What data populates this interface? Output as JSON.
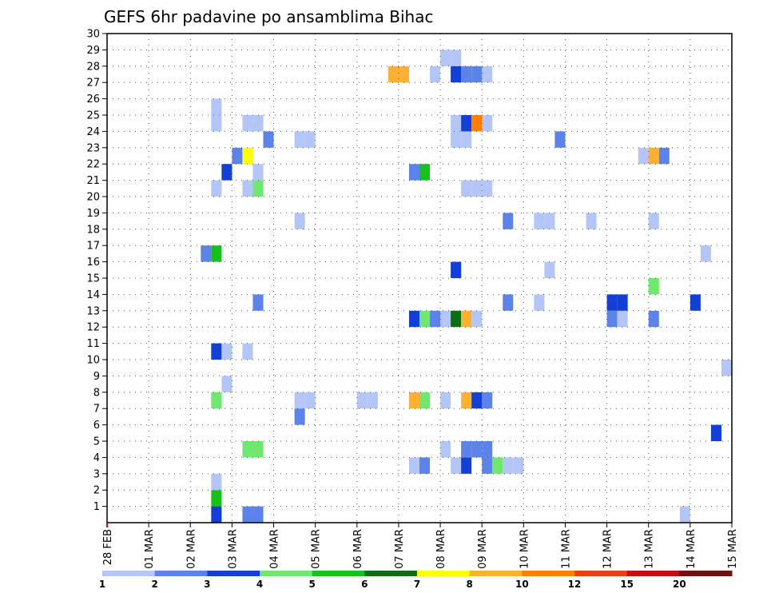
{
  "chart_data": {
    "type": "heatmap",
    "title": "GEFS 6hr padavine po ansamblima Bihac",
    "x_tick_labels": [
      "28 FEB",
      "01 MAR",
      "02 MAR",
      "03 MAR",
      "04 MAR",
      "05 MAR",
      "06 MAR",
      "07 MAR",
      "08 MAR",
      "09 MAR",
      "10 MAR",
      "11 MAR",
      "12 MAR",
      "13 MAR",
      "14 MAR",
      "15 MAR"
    ],
    "y_tick_labels": [
      "1",
      "2",
      "3",
      "4",
      "5",
      "6",
      "7",
      "8",
      "9",
      "10",
      "11",
      "12",
      "13",
      "14",
      "15",
      "16",
      "17",
      "18",
      "19",
      "20",
      "21",
      "22",
      "23",
      "24",
      "25",
      "26",
      "27",
      "28",
      "29",
      "30"
    ],
    "xlim": [
      0,
      60
    ],
    "ylim": [
      0,
      30
    ],
    "grid": true,
    "colorbar": {
      "labels": [
        "1",
        "2",
        "3",
        "4",
        "5",
        "6",
        "7",
        "8",
        "10",
        "12",
        "15",
        "20"
      ],
      "colors": [
        "#b3c6f7",
        "#5b83ea",
        "#1240d6",
        "#6ee86e",
        "#18c01c",
        "#0c6e12",
        "#ffff00",
        "#ffb030",
        "#ff8000",
        "#e84010",
        "#c01010",
        "#701010"
      ]
    },
    "cells_note_units": "x = 6-hour step index from 28 FEB 00 (4 per day), y = ensemble member, c = colorbar class index",
    "cells": [
      {
        "x": 10.5,
        "y": 0,
        "c": 2
      },
      {
        "x": 13.5,
        "y": 0,
        "c": 1
      },
      {
        "x": 14.5,
        "y": 0,
        "c": 1
      },
      {
        "x": 55.5,
        "y": 0,
        "c": 0
      },
      {
        "x": 10.5,
        "y": 1,
        "c": 4
      },
      {
        "x": 10.5,
        "y": 2,
        "c": 0
      },
      {
        "x": 29.5,
        "y": 3,
        "c": 0
      },
      {
        "x": 30.5,
        "y": 3,
        "c": 1
      },
      {
        "x": 33.5,
        "y": 3,
        "c": 0
      },
      {
        "x": 34.5,
        "y": 3,
        "c": 2
      },
      {
        "x": 36.5,
        "y": 3,
        "c": 1
      },
      {
        "x": 37.5,
        "y": 3,
        "c": 3
      },
      {
        "x": 38.5,
        "y": 3,
        "c": 0
      },
      {
        "x": 39.5,
        "y": 3,
        "c": 0
      },
      {
        "x": 13.5,
        "y": 4,
        "c": 3
      },
      {
        "x": 14.5,
        "y": 4,
        "c": 3
      },
      {
        "x": 32.5,
        "y": 4,
        "c": 0
      },
      {
        "x": 34.5,
        "y": 4,
        "c": 1
      },
      {
        "x": 35.5,
        "y": 4,
        "c": 1
      },
      {
        "x": 36.5,
        "y": 4,
        "c": 1
      },
      {
        "x": 58.5,
        "y": 5,
        "c": 2
      },
      {
        "x": 18.5,
        "y": 6,
        "c": 1
      },
      {
        "x": 10.5,
        "y": 7,
        "c": 3
      },
      {
        "x": 18.5,
        "y": 7,
        "c": 0
      },
      {
        "x": 19.5,
        "y": 7,
        "c": 0
      },
      {
        "x": 24.5,
        "y": 7,
        "c": 0
      },
      {
        "x": 25.5,
        "y": 7,
        "c": 0
      },
      {
        "x": 29.5,
        "y": 7,
        "c": 7
      },
      {
        "x": 30.5,
        "y": 7,
        "c": 3
      },
      {
        "x": 32.5,
        "y": 7,
        "c": 0
      },
      {
        "x": 34.5,
        "y": 7,
        "c": 7
      },
      {
        "x": 35.5,
        "y": 7,
        "c": 2
      },
      {
        "x": 36.5,
        "y": 7,
        "c": 1
      },
      {
        "x": 11.5,
        "y": 8,
        "c": 0
      },
      {
        "x": 59.5,
        "y": 9,
        "c": 0
      },
      {
        "x": 10.5,
        "y": 10,
        "c": 2
      },
      {
        "x": 11.5,
        "y": 10,
        "c": 0
      },
      {
        "x": 13.5,
        "y": 10,
        "c": 0
      },
      {
        "x": 29.5,
        "y": 12,
        "c": 2
      },
      {
        "x": 30.5,
        "y": 12,
        "c": 3
      },
      {
        "x": 31.5,
        "y": 12,
        "c": 1
      },
      {
        "x": 32.5,
        "y": 12,
        "c": 0
      },
      {
        "x": 33.5,
        "y": 12,
        "c": 5
      },
      {
        "x": 34.5,
        "y": 12,
        "c": 7
      },
      {
        "x": 35.5,
        "y": 12,
        "c": 0
      },
      {
        "x": 48.5,
        "y": 12,
        "c": 1
      },
      {
        "x": 49.5,
        "y": 12,
        "c": 0
      },
      {
        "x": 52.5,
        "y": 12,
        "c": 1
      },
      {
        "x": 14.5,
        "y": 13,
        "c": 1
      },
      {
        "x": 38.5,
        "y": 13,
        "c": 1
      },
      {
        "x": 41.5,
        "y": 13,
        "c": 0
      },
      {
        "x": 48.5,
        "y": 13,
        "c": 2
      },
      {
        "x": 49.5,
        "y": 13,
        "c": 2
      },
      {
        "x": 56.5,
        "y": 13,
        "c": 2
      },
      {
        "x": 52.5,
        "y": 14,
        "c": 3
      },
      {
        "x": 33.5,
        "y": 15,
        "c": 2
      },
      {
        "x": 42.5,
        "y": 15,
        "c": 0
      },
      {
        "x": 9.5,
        "y": 16,
        "c": 1
      },
      {
        "x": 10.5,
        "y": 16,
        "c": 4
      },
      {
        "x": 57.5,
        "y": 16,
        "c": 0
      },
      {
        "x": 18.5,
        "y": 18,
        "c": 0
      },
      {
        "x": 38.5,
        "y": 18,
        "c": 1
      },
      {
        "x": 41.5,
        "y": 18,
        "c": 0
      },
      {
        "x": 42.5,
        "y": 18,
        "c": 0
      },
      {
        "x": 46.5,
        "y": 18,
        "c": 0
      },
      {
        "x": 52.5,
        "y": 18,
        "c": 0
      },
      {
        "x": 10.5,
        "y": 20,
        "c": 0
      },
      {
        "x": 13.5,
        "y": 20,
        "c": 0
      },
      {
        "x": 14.5,
        "y": 20,
        "c": 3
      },
      {
        "x": 34.5,
        "y": 20,
        "c": 0
      },
      {
        "x": 35.5,
        "y": 20,
        "c": 0
      },
      {
        "x": 36.5,
        "y": 20,
        "c": 0
      },
      {
        "x": 11.5,
        "y": 21,
        "c": 2
      },
      {
        "x": 14.5,
        "y": 21,
        "c": 0
      },
      {
        "x": 29.5,
        "y": 21,
        "c": 1
      },
      {
        "x": 30.5,
        "y": 21,
        "c": 4
      },
      {
        "x": 12.5,
        "y": 22,
        "c": 1
      },
      {
        "x": 13.5,
        "y": 22,
        "c": 6
      },
      {
        "x": 51.5,
        "y": 22,
        "c": 0
      },
      {
        "x": 52.5,
        "y": 22,
        "c": 7
      },
      {
        "x": 53.5,
        "y": 22,
        "c": 1
      },
      {
        "x": 15.5,
        "y": 23,
        "c": 1
      },
      {
        "x": 18.5,
        "y": 23,
        "c": 0
      },
      {
        "x": 19.5,
        "y": 23,
        "c": 0
      },
      {
        "x": 33.5,
        "y": 23,
        "c": 0
      },
      {
        "x": 34.5,
        "y": 23,
        "c": 0
      },
      {
        "x": 43.5,
        "y": 23,
        "c": 1
      },
      {
        "x": 10.5,
        "y": 24,
        "c": 0
      },
      {
        "x": 13.5,
        "y": 24,
        "c": 0
      },
      {
        "x": 14.5,
        "y": 24,
        "c": 0
      },
      {
        "x": 33.5,
        "y": 24,
        "c": 0
      },
      {
        "x": 34.5,
        "y": 24,
        "c": 2
      },
      {
        "x": 35.5,
        "y": 24,
        "c": 8
      },
      {
        "x": 36.5,
        "y": 24,
        "c": 0
      },
      {
        "x": 10.5,
        "y": 25,
        "c": 0
      },
      {
        "x": 27.5,
        "y": 27,
        "c": 7
      },
      {
        "x": 28.5,
        "y": 27,
        "c": 7
      },
      {
        "x": 31.5,
        "y": 27,
        "c": 0
      },
      {
        "x": 33.5,
        "y": 27,
        "c": 2
      },
      {
        "x": 34.5,
        "y": 27,
        "c": 1
      },
      {
        "x": 35.5,
        "y": 27,
        "c": 1
      },
      {
        "x": 36.5,
        "y": 27,
        "c": 0
      },
      {
        "x": 32.5,
        "y": 28,
        "c": 0
      },
      {
        "x": 33.5,
        "y": 28,
        "c": 0
      }
    ]
  }
}
